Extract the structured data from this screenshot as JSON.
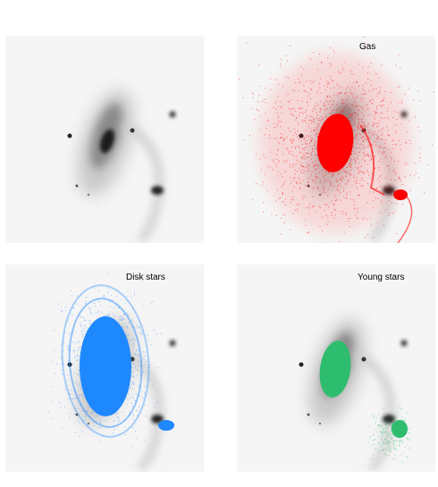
{
  "labels": [
    "Gas",
    "Disk stars",
    "Young stars"
  ]
}
